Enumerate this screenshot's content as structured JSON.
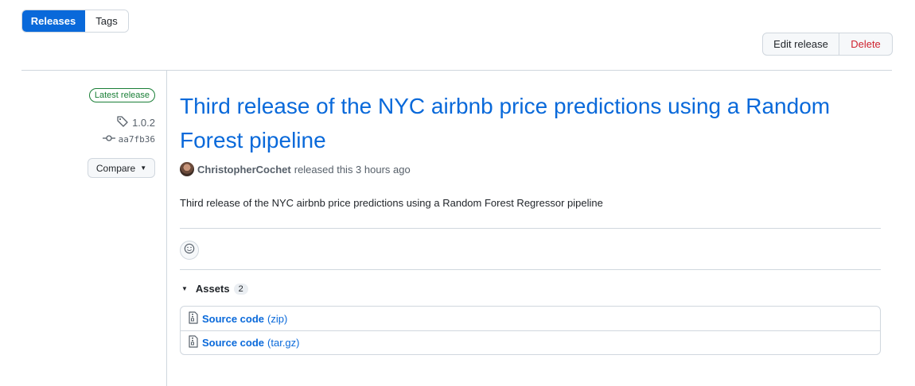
{
  "tabs": {
    "releases": "Releases",
    "tags": "Tags"
  },
  "actions": {
    "edit": "Edit release",
    "delete": "Delete"
  },
  "sidebar": {
    "badge": "Latest release",
    "tag": "1.0.2",
    "commit": "aa7fb36",
    "compare": "Compare"
  },
  "release": {
    "title": "Third release of the NYC airbnb price predictions using a Random Forest pipeline",
    "author": "ChristopherCochet",
    "released_text": "released this 3 hours ago",
    "body": "Third release of the NYC airbnb price predictions using a Random Forest Regressor pipeline"
  },
  "assets": {
    "label": "Assets",
    "count": "2",
    "items": [
      {
        "name": "Source code",
        "ext": "(zip)"
      },
      {
        "name": "Source code",
        "ext": "(tar.gz)"
      }
    ]
  },
  "colors": {
    "accent": "#0969da",
    "danger": "#cf222e",
    "success": "#1a7f37"
  },
  "icons": [
    "tag-icon",
    "git-commit-icon",
    "triangle-down-icon",
    "smiley-icon",
    "file-zip-icon"
  ]
}
